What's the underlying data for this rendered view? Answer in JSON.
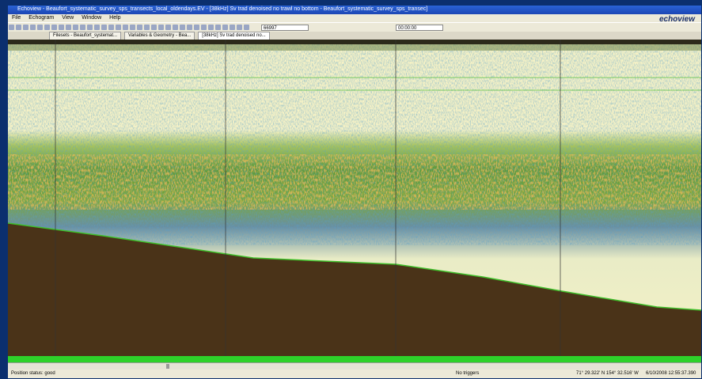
{
  "window": {
    "title": "Echoview - Beaufort_systematic_survey_sps_transects_local_oldendays.EV - [38kHz] Sv trad denoised no trawl no bottom - Beaufort_systematic_survey_sps_transec]",
    "logo": "echoview"
  },
  "menu": [
    "File",
    "Echogram",
    "View",
    "Window",
    "Help"
  ],
  "toolbar": {
    "field_1": "66997",
    "field_2": "00:00:00"
  },
  "tabs": [
    "Filesets - Beaufort_systemat...",
    "Variables & Geometry - Bea...",
    "[38kHz] Sv trad denoised no..."
  ],
  "status": {
    "position": "Position status: good",
    "triggers": "No triggers",
    "coordinates": "71° 29.322' N 154° 32.516' W",
    "time": "6/10/2008 12:55:37.390"
  }
}
